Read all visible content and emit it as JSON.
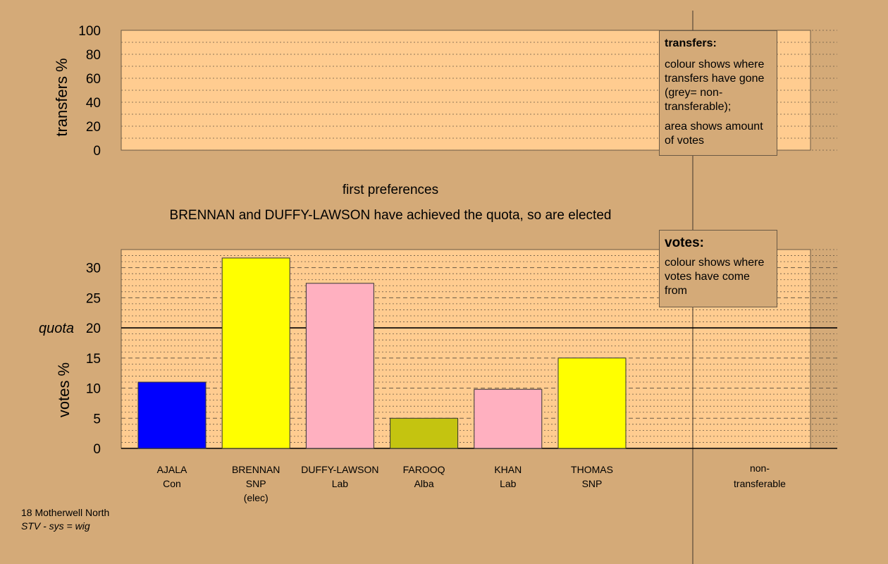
{
  "chart_data": [
    {
      "type": "bar",
      "name": "transfers",
      "ylabel": "transfers %",
      "ylim": [
        0,
        100
      ],
      "yticks": [
        0,
        20,
        40,
        60,
        80,
        100
      ],
      "values": []
    },
    {
      "type": "bar",
      "name": "votes",
      "ylabel": "votes %",
      "ylim": [
        0,
        33
      ],
      "yticks": [
        0,
        5,
        10,
        15,
        20,
        25,
        30
      ],
      "quota": 20,
      "quota_label": "quota",
      "title": "first preferences",
      "subtitle": "BRENNAN and DUFFY-LAWSON have achieved the quota, so are elected",
      "candidates": [
        {
          "name": "AJALA",
          "party": "Con",
          "note": "",
          "value": 11.0,
          "color": "#0000ff"
        },
        {
          "name": "BRENNAN",
          "party": "SNP",
          "note": "(elec)",
          "value": 31.6,
          "color": "#ffff00"
        },
        {
          "name": "DUFFY-LAWSON",
          "party": "Lab",
          "note": "",
          "value": 27.4,
          "color": "#ffb0c0"
        },
        {
          "name": "FAROOQ",
          "party": "Alba",
          "note": "",
          "value": 5.0,
          "color": "#c4c410"
        },
        {
          "name": "KHAN",
          "party": "Lab",
          "note": "",
          "value": 9.8,
          "color": "#ffb0c0"
        },
        {
          "name": "THOMAS",
          "party": "SNP",
          "note": "",
          "value": 15.0,
          "color": "#ffff00"
        }
      ],
      "nontransferable_label": [
        "non-",
        "transferable"
      ]
    }
  ],
  "legends": {
    "transfers": {
      "title": "transfers:",
      "line1": "colour shows where transfers have gone (grey= non-transferable);",
      "line2": "area shows amount of votes"
    },
    "votes": {
      "title": "votes:",
      "line1": "colour shows where votes have come from"
    }
  },
  "footer": {
    "line1": "18 Motherwell North",
    "line2": "STV - sys = wig"
  },
  "colors": {
    "background": "#d4aa78",
    "plot_fill": "#ffcc90"
  }
}
